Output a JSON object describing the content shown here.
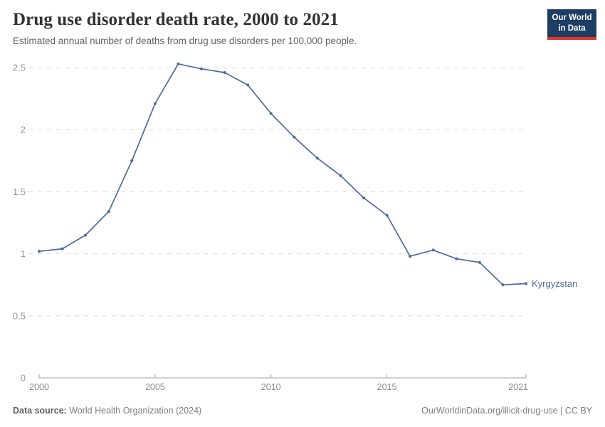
{
  "header": {
    "title": "Drug use disorder death rate, 2000 to 2021",
    "subtitle": "Estimated annual number of deaths from drug use disorders per 100,000 people.",
    "logo": {
      "line1": "Our World",
      "line2": "in Data",
      "bg_color": "#1d3d63",
      "accent_color": "#e2352c"
    }
  },
  "chart_data": {
    "type": "line",
    "title": "Drug use disorder death rate, 2000 to 2021",
    "x": [
      2000,
      2001,
      2002,
      2003,
      2004,
      2005,
      2006,
      2007,
      2008,
      2009,
      2010,
      2011,
      2012,
      2013,
      2014,
      2015,
      2016,
      2017,
      2018,
      2019,
      2020,
      2021
    ],
    "series": [
      {
        "name": "Kyrgyzstan",
        "color": "#4c6a9c",
        "values": [
          1.02,
          1.04,
          1.15,
          1.34,
          1.75,
          2.21,
          2.53,
          2.49,
          2.46,
          2.36,
          2.13,
          1.94,
          1.77,
          1.63,
          1.45,
          1.31,
          0.98,
          1.03,
          0.96,
          0.93,
          0.75,
          0.76
        ]
      }
    ],
    "xlabel": "",
    "ylabel": "",
    "ylim": [
      0,
      2.5
    ],
    "y_ticks": [
      0,
      0.5,
      1,
      1.5,
      2,
      2.5
    ],
    "y_tick_labels": [
      "0",
      "0.5",
      "1",
      "1.5",
      "2",
      "2.5"
    ],
    "x_ticks": [
      2000,
      2005,
      2010,
      2015,
      2021
    ],
    "x_tick_labels": [
      "2000",
      "2005",
      "2010",
      "2015",
      "2021"
    ],
    "grid": "horizontal-dashed",
    "legend_position": "end-of-line-label",
    "entity_label": "Kyrgyzstan",
    "colors": {
      "line": "#4c6a9c",
      "gridline": "#dcdcdc",
      "axis": "#a3a3a3",
      "y_tick_text": "#999999",
      "x_tick_text": "#8a8a8a"
    }
  },
  "footer": {
    "source_label": "Data source:",
    "source_value": "World Health Organization (2024)",
    "attribution": "OurWorldinData.org/illicit-drug-use | CC BY"
  }
}
